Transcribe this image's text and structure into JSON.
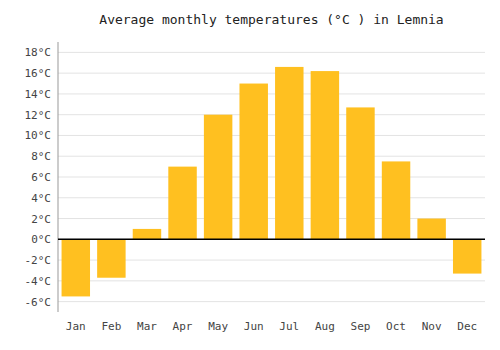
{
  "chart_data": {
    "type": "bar",
    "title": "Average monthly temperatures (°C ) in Lemnia",
    "categories": [
      "Jan",
      "Feb",
      "Mar",
      "Apr",
      "May",
      "Jun",
      "Jul",
      "Aug",
      "Sep",
      "Oct",
      "Nov",
      "Dec"
    ],
    "values": [
      -5.5,
      -3.7,
      1.0,
      7.0,
      12.0,
      15.0,
      16.6,
      16.2,
      12.7,
      7.5,
      2.0,
      -3.3
    ],
    "color": "#FFC020",
    "ylim": [
      -7,
      19
    ],
    "yticks": [
      {
        "value": -6,
        "label": "-6°C"
      },
      {
        "value": -4,
        "label": "-4°C"
      },
      {
        "value": -2,
        "label": "-2°C"
      },
      {
        "value": 0,
        "label": "0°C"
      },
      {
        "value": 2,
        "label": "2°C"
      },
      {
        "value": 4,
        "label": "4°C"
      },
      {
        "value": 6,
        "label": "6°C"
      },
      {
        "value": 8,
        "label": "8°C"
      },
      {
        "value": 10,
        "label": "10°C"
      },
      {
        "value": 12,
        "label": "12°C"
      },
      {
        "value": 14,
        "label": "14°C"
      },
      {
        "value": 16,
        "label": "16°C"
      },
      {
        "value": 18,
        "label": "18°C"
      }
    ],
    "grid": true
  }
}
